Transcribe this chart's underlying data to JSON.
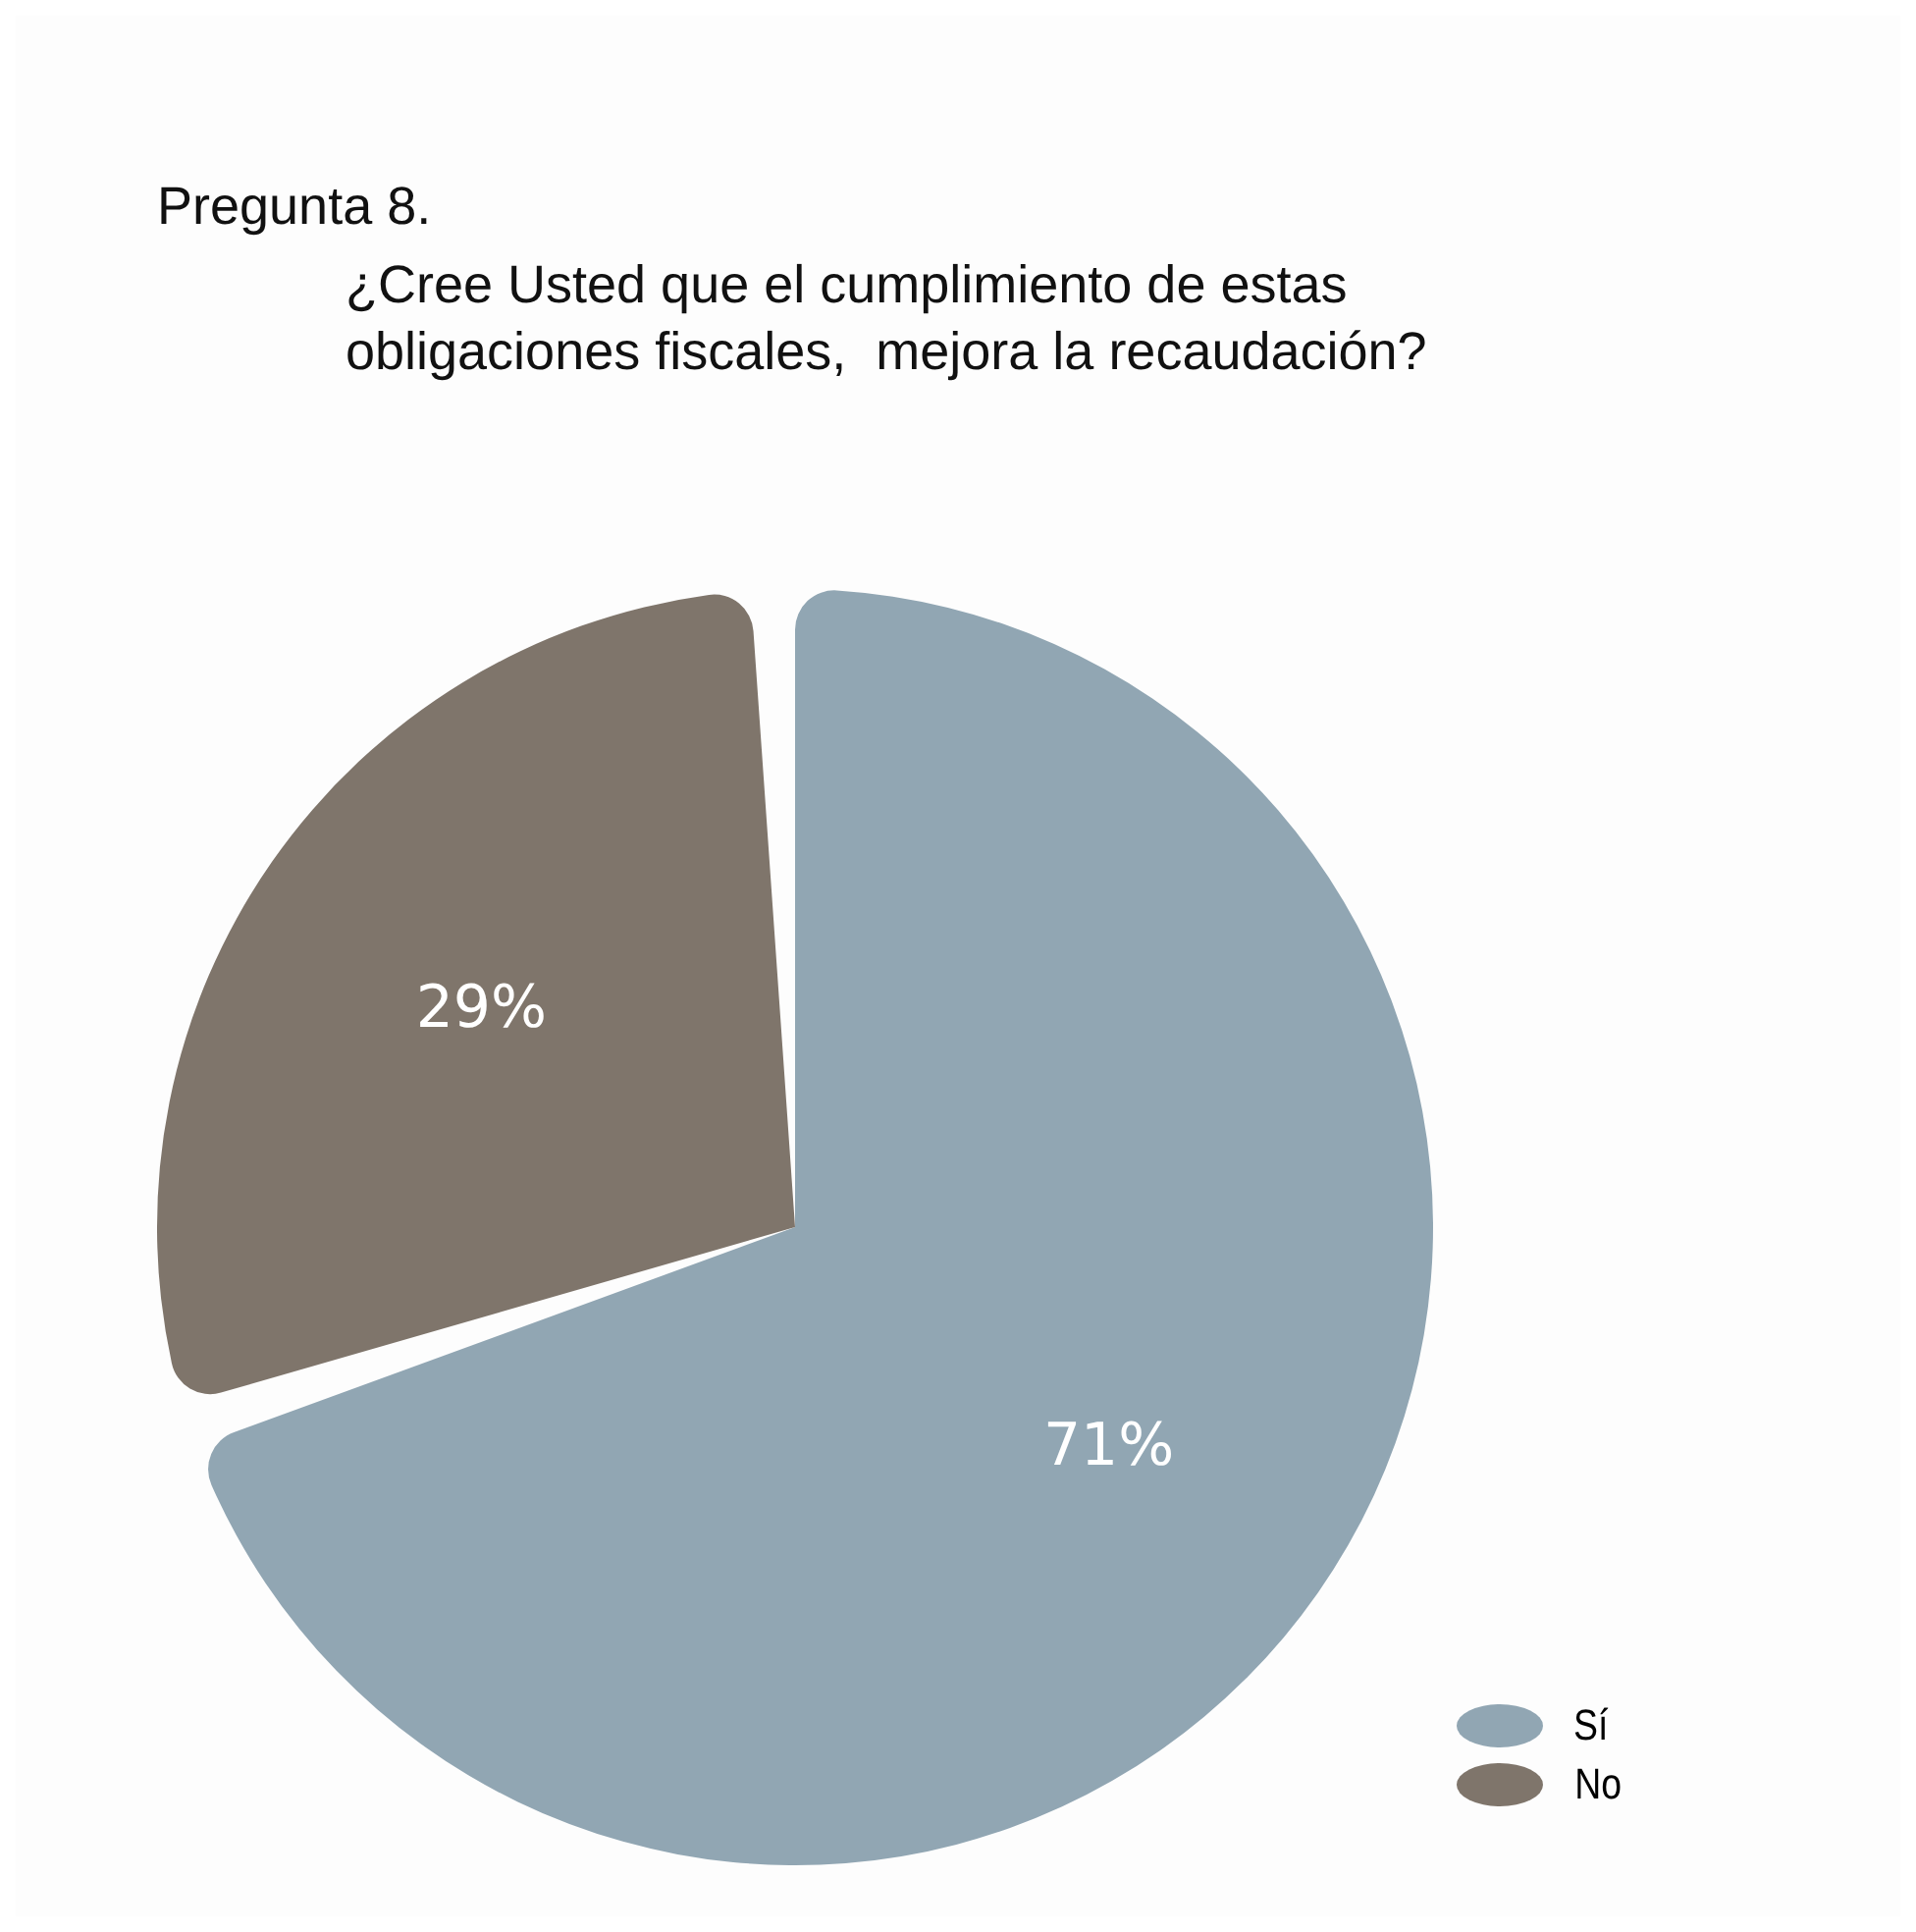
{
  "chart_data": {
    "type": "pie",
    "title": "Pregunta 8.",
    "subtitle": "¿Cree Usted que el cumplimiento de estas obligaciones fiscales,  mejora la recaudación?",
    "categories": [
      "Sí",
      "No"
    ],
    "values": [
      71,
      29
    ],
    "colors": [
      "#91a6b3",
      "#7f756b"
    ],
    "value_labels": [
      "71%",
      "29%"
    ],
    "legend": "bottom right"
  }
}
